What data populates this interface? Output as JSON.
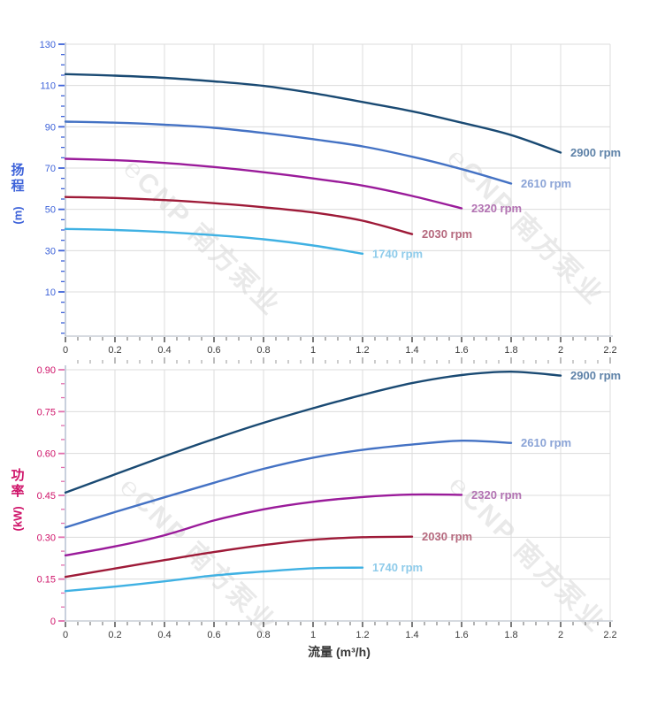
{
  "watermark": {
    "logo": "℮",
    "text": "CNP 南方泵业",
    "color": "#d8d8d8"
  },
  "chart_data": [
    {
      "type": "line",
      "name": "head-vs-flow",
      "title": "",
      "xlabel": "",
      "ylabel": "扬程 (m)",
      "ylabel_main": "扬程",
      "ylabel_unit": "(m)",
      "xlim": [
        0,
        2.21
      ],
      "ylim": [
        -11.5,
        130.8
      ],
      "grid": true,
      "legend_position": "curve-end",
      "axis_text_color": "#3d62d9",
      "tick_color": "#3d62d9",
      "x_major_ticks": {
        "values": [
          0,
          0.2,
          0.4,
          0.6,
          0.8,
          1,
          1.2,
          1.4,
          1.6,
          1.8,
          2,
          2.2
        ],
        "labels": [
          "0",
          "0.2",
          "0.4",
          "0.6",
          "0.8",
          "1",
          "1.2",
          "1.4",
          "1.6",
          "1.8",
          "2",
          "2.2"
        ]
      },
      "y_major_ticks": {
        "values": [
          10,
          30,
          50,
          70,
          90,
          110,
          130
        ],
        "labels": [
          "10",
          "30",
          "50",
          "70",
          "90",
          "110",
          "130"
        ]
      },
      "x_minor": {
        "from": 0.05,
        "to": 2.2,
        "step": 0.05
      },
      "y_minor": {
        "from": -10,
        "to": 130,
        "step": 5
      },
      "series": [
        {
          "name": "2900 rpm",
          "color": "#1a4a73",
          "label_color": "#5e82a8",
          "x": [
            0,
            0.2,
            0.4,
            0.6,
            0.8,
            1,
            1.2,
            1.4,
            1.6,
            1.8,
            2
          ],
          "y": [
            115.5,
            114.8,
            113.7,
            112,
            109.8,
            106.3,
            102,
            97.5,
            92,
            86,
            77.5
          ]
        },
        {
          "name": "2610 rpm",
          "color": "#4472c4",
          "label_color": "#8aa3d6",
          "x": [
            0,
            0.2,
            0.4,
            0.6,
            0.8,
            1,
            1.2,
            1.4,
            1.6,
            1.8
          ],
          "y": [
            92.5,
            92,
            91,
            89.5,
            87,
            84,
            80.5,
            75.5,
            69.5,
            62.5
          ]
        },
        {
          "name": "2320 rpm",
          "color": "#9a1b9a",
          "label_color": "#b272b2",
          "x": [
            0,
            0.2,
            0.4,
            0.6,
            0.8,
            1,
            1.2,
            1.4,
            1.6
          ],
          "y": [
            74.5,
            73.8,
            72.5,
            70.5,
            68,
            65,
            61.5,
            56.5,
            50.5
          ]
        },
        {
          "name": "2030 rpm",
          "color": "#9e1a38",
          "label_color": "#b5687d",
          "x": [
            0,
            0.2,
            0.4,
            0.6,
            0.8,
            1,
            1.2,
            1.4
          ],
          "y": [
            56,
            55.5,
            54.5,
            53,
            51,
            48.5,
            44.5,
            38
          ]
        },
        {
          "name": "1740 rpm",
          "color": "#3fb1e3",
          "label_color": "#8ecbea",
          "x": [
            0,
            0.2,
            0.4,
            0.6,
            0.8,
            1,
            1.2
          ],
          "y": [
            40.5,
            40,
            39,
            37.5,
            35.5,
            32.5,
            28.5
          ]
        }
      ]
    },
    {
      "type": "line",
      "name": "power-vs-flow",
      "title": "",
      "xlabel": "流量 (m³/h)",
      "ylabel": "功率 (kW)",
      "ylabel_main": "功率",
      "ylabel_unit": "(kW)",
      "xlim": [
        0,
        2.21
      ],
      "ylim": [
        0,
        0.915
      ],
      "grid": true,
      "legend_position": "curve-end",
      "axis_text_color": "#cf1369",
      "tick_color": "#e26fae",
      "x_major_ticks": {
        "values": [
          0,
          0.2,
          0.4,
          0.6,
          0.8,
          1,
          1.2,
          1.4,
          1.6,
          1.8,
          2,
          2.2
        ],
        "labels": [
          "0",
          "0.2",
          "0.4",
          "0.6",
          "0.8",
          "1",
          "1.2",
          "1.4",
          "1.6",
          "1.8",
          "2",
          "2.2"
        ]
      },
      "y_major_ticks": {
        "values": [
          0,
          0.15,
          0.3,
          0.45,
          0.6,
          0.75,
          0.9
        ],
        "labels": [
          "0",
          "0.15",
          "0.30",
          "0.45",
          "0.60",
          "0.75",
          "0.90"
        ]
      },
      "x_minor": {
        "from": 0.05,
        "to": 2.2,
        "step": 0.05
      },
      "y_minor": {
        "from": 0.05,
        "to": 0.85,
        "step": 0.05
      },
      "series": [
        {
          "name": "2900 rpm",
          "color": "#1a4a73",
          "label_color": "#5e82a8",
          "x": [
            0,
            0.2,
            0.4,
            0.6,
            0.8,
            1,
            1.2,
            1.4,
            1.6,
            1.8,
            2
          ],
          "y": [
            0.46,
            0.525,
            0.59,
            0.652,
            0.71,
            0.762,
            0.81,
            0.852,
            0.881,
            0.893,
            0.879
          ]
        },
        {
          "name": "2610 rpm",
          "color": "#4472c4",
          "label_color": "#8aa3d6",
          "x": [
            0,
            0.2,
            0.4,
            0.6,
            0.8,
            1,
            1.2,
            1.4,
            1.6,
            1.8
          ],
          "y": [
            0.335,
            0.39,
            0.443,
            0.495,
            0.545,
            0.585,
            0.613,
            0.632,
            0.646,
            0.638
          ]
        },
        {
          "name": "2320 rpm",
          "color": "#9a1b9a",
          "label_color": "#b272b2",
          "x": [
            0,
            0.2,
            0.4,
            0.6,
            0.8,
            1,
            1.2,
            1.4,
            1.6
          ],
          "y": [
            0.235,
            0.267,
            0.307,
            0.36,
            0.4,
            0.427,
            0.444,
            0.453,
            0.452
          ]
        },
        {
          "name": "2030 rpm",
          "color": "#9e1a38",
          "label_color": "#b5687d",
          "x": [
            0,
            0.2,
            0.4,
            0.6,
            0.8,
            1,
            1.2,
            1.4
          ],
          "y": [
            0.158,
            0.188,
            0.218,
            0.247,
            0.272,
            0.291,
            0.3,
            0.302
          ]
        },
        {
          "name": "1740 rpm",
          "color": "#3fb1e3",
          "label_color": "#8ecbea",
          "x": [
            0,
            0.2,
            0.4,
            0.6,
            0.8,
            1,
            1.2
          ],
          "y": [
            0.107,
            0.123,
            0.142,
            0.163,
            0.177,
            0.189,
            0.191
          ]
        }
      ]
    }
  ]
}
